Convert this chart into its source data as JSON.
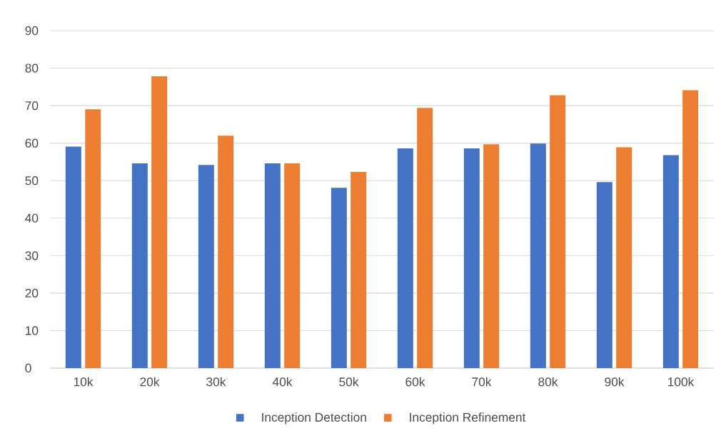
{
  "chart_data": {
    "type": "bar",
    "categories": [
      "10k",
      "20k",
      "30k",
      "40k",
      "50k",
      "60k",
      "70k",
      "80k",
      "90k",
      "100k"
    ],
    "series": [
      {
        "name": "Inception Detection",
        "color": "#4472c4",
        "values": [
          59.1,
          54.6,
          54.2,
          54.6,
          48.1,
          58.6,
          58.6,
          59.9,
          49.6,
          56.8
        ]
      },
      {
        "name": "Inception Refinement",
        "color": "#ed7d31",
        "values": [
          69.0,
          77.8,
          62.0,
          54.6,
          52.3,
          69.4,
          59.7,
          72.8,
          58.9,
          74.1
        ]
      }
    ],
    "ylim": [
      0,
      90
    ],
    "yticks": [
      0,
      10,
      20,
      30,
      40,
      50,
      60,
      70,
      80,
      90
    ],
    "grid": "y",
    "legend": "bottom"
  }
}
